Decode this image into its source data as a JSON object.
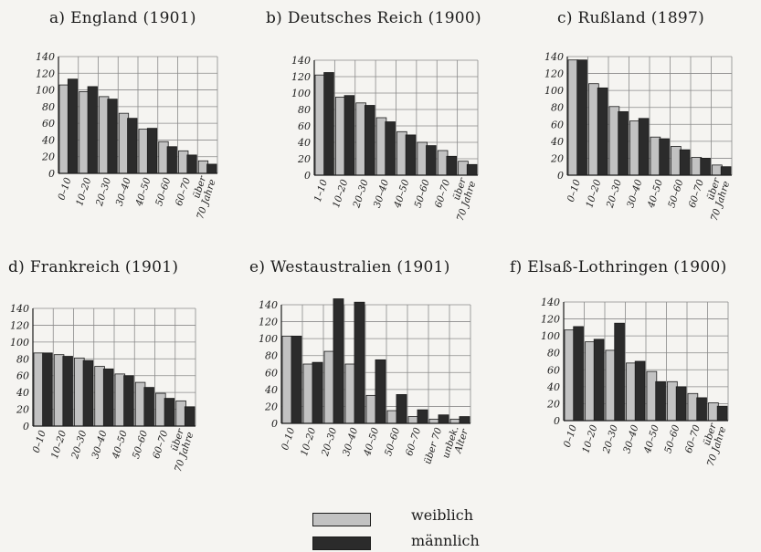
{
  "colors": {
    "female": "#c2c2c2",
    "male": "#2b2b2b",
    "ink": "#1c1c1c",
    "grid": "#8a8a8a"
  },
  "legend": {
    "female_label": "weiblich",
    "male_label": "männlich"
  },
  "chart_data": [
    {
      "type": "bar",
      "title": "a) England (1901)",
      "categories": [
        "0–10",
        "10–20",
        "20–30",
        "30–40",
        "40–50",
        "50–60",
        "60–70",
        "über 70 Jahre"
      ],
      "series": [
        {
          "name": "weiblich",
          "values": [
            106,
            98,
            92,
            72,
            53,
            38,
            27,
            15
          ]
        },
        {
          "name": "männlich",
          "values": [
            113,
            104,
            89,
            66,
            54,
            32,
            22,
            11
          ]
        }
      ],
      "ylim": [
        0,
        140
      ],
      "yticks": [
        0,
        20,
        40,
        60,
        80,
        100,
        120,
        140
      ],
      "grid": true
    },
    {
      "type": "bar",
      "title": "b) Deutsches Reich (1900)",
      "categories": [
        "1–10",
        "10–20",
        "20–30",
        "30–40",
        "40–50",
        "50–60",
        "60–70",
        "über 70 Jahre"
      ],
      "series": [
        {
          "name": "weiblich",
          "values": [
            122,
            95,
            88,
            70,
            53,
            40,
            30,
            17
          ]
        },
        {
          "name": "männlich",
          "values": [
            125,
            97,
            85,
            65,
            49,
            36,
            23,
            13
          ]
        }
      ],
      "ylim": [
        0,
        140
      ],
      "yticks": [
        0,
        20,
        40,
        60,
        80,
        100,
        120,
        140
      ],
      "grid": true
    },
    {
      "type": "bar",
      "title": "c) Rußland (1897)",
      "categories": [
        "0–10",
        "10–20",
        "20–30",
        "30–40",
        "40–50",
        "50–60",
        "60–70",
        "über 70 Jahre"
      ],
      "series": [
        {
          "name": "weiblich",
          "values": [
            136,
            108,
            81,
            64,
            45,
            34,
            21,
            12
          ]
        },
        {
          "name": "männlich",
          "values": [
            136,
            103,
            75,
            67,
            43,
            30,
            20,
            10
          ]
        }
      ],
      "ylim": [
        0,
        140
      ],
      "yticks": [
        0,
        20,
        40,
        60,
        80,
        100,
        120,
        140
      ],
      "grid": true
    },
    {
      "type": "bar",
      "title": "d) Frankreich (1901)",
      "categories": [
        "0–10",
        "10–20",
        "20–30",
        "30–40",
        "40–50",
        "50–60",
        "60–70",
        "über 70 Jahre"
      ],
      "series": [
        {
          "name": "weiblich",
          "values": [
            87,
            85,
            81,
            71,
            62,
            52,
            39,
            30
          ]
        },
        {
          "name": "männlich",
          "values": [
            87,
            83,
            78,
            68,
            60,
            46,
            33,
            23
          ]
        }
      ],
      "ylim": [
        0,
        140
      ],
      "yticks": [
        0,
        20,
        40,
        60,
        80,
        100,
        120,
        140
      ],
      "grid": true
    },
    {
      "type": "bar",
      "title": "e) Westaustralien (1901)",
      "categories": [
        "0–10",
        "10–20",
        "20–30",
        "30–40",
        "40–50",
        "50–60",
        "60–70",
        "über 70",
        "unbek. Alter"
      ],
      "series": [
        {
          "name": "weiblich",
          "values": [
            103,
            70,
            85,
            70,
            33,
            15,
            8,
            5,
            5
          ]
        },
        {
          "name": "männlich",
          "values": [
            103,
            72,
            147,
            143,
            75,
            34,
            16,
            10,
            8
          ]
        }
      ],
      "ylim": [
        0,
        140
      ],
      "yticks": [
        0,
        20,
        40,
        60,
        80,
        100,
        120,
        140
      ],
      "grid": true
    },
    {
      "type": "bar",
      "title": "f) Elsaß-Lothringen (1900)",
      "categories": [
        "0–10",
        "10–20",
        "20–30",
        "30–40",
        "40–50",
        "50–60",
        "60–70",
        "über 70 Jahre"
      ],
      "series": [
        {
          "name": "weiblich",
          "values": [
            107,
            93,
            83,
            68,
            58,
            46,
            32,
            21
          ]
        },
        {
          "name": "männlich",
          "values": [
            111,
            96,
            115,
            70,
            46,
            40,
            27,
            17
          ]
        }
      ],
      "ylim": [
        0,
        140
      ],
      "yticks": [
        0,
        20,
        40,
        60,
        80,
        100,
        120,
        140
      ],
      "grid": true
    }
  ]
}
